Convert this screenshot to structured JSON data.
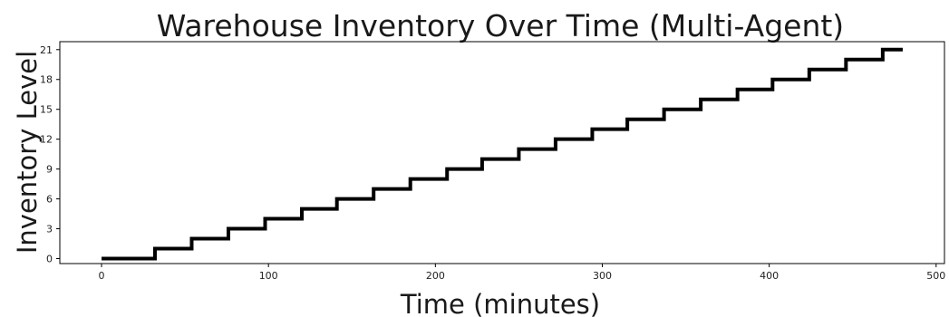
{
  "chart_data": {
    "type": "line",
    "title": "Warehouse Inventory Over Time (Multi-Agent)",
    "xlabel": "Time (minutes)",
    "ylabel": "Inventory Level",
    "xlim": [
      -25,
      505
    ],
    "ylim": [
      -0.5,
      21.8
    ],
    "xticks": [
      0,
      100,
      200,
      300,
      400,
      500
    ],
    "xtick_labels": [
      "0",
      "100",
      "200",
      "300",
      "400",
      "500"
    ],
    "yticks": [
      0,
      3,
      6,
      9,
      12,
      15,
      18,
      21
    ],
    "ytick_labels": [
      "0",
      "3",
      "6",
      "9",
      "12",
      "15",
      "18",
      "21"
    ],
    "grid": false,
    "line_color": "#000000",
    "step": "post",
    "series": [
      {
        "x": [
          0,
          32,
          54,
          76,
          98,
          120,
          141,
          163,
          185,
          207,
          228,
          250,
          272,
          294,
          315,
          337,
          359,
          381,
          402,
          424,
          446,
          468,
          480
        ],
        "y": [
          0,
          1,
          2,
          3,
          4,
          5,
          6,
          7,
          8,
          9,
          10,
          11,
          12,
          13,
          14,
          15,
          16,
          17,
          18,
          19,
          20,
          21,
          21
        ]
      }
    ]
  }
}
